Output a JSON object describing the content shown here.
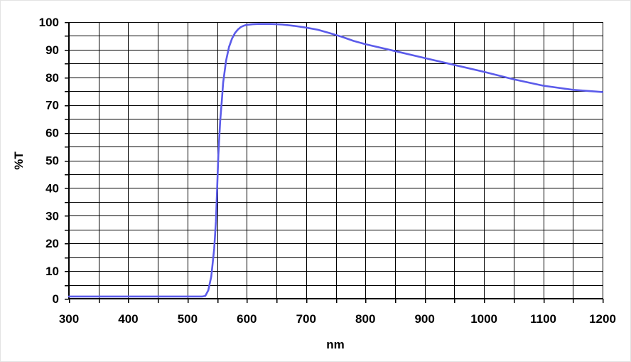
{
  "chart_data": {
    "type": "line",
    "title": "",
    "xlabel": "nm",
    "ylabel": "%T",
    "xlim": [
      300,
      1200
    ],
    "ylim": [
      0,
      100
    ],
    "x_ticks": [
      300,
      400,
      500,
      600,
      700,
      800,
      900,
      1000,
      1100,
      1200
    ],
    "y_ticks": [
      0,
      10,
      20,
      30,
      40,
      50,
      60,
      70,
      80,
      90,
      100
    ],
    "x_grid_step": 50,
    "y_grid_step": 5,
    "grid": true,
    "line_color": "#5b5bea",
    "series": [
      {
        "x": [
          300,
          400,
          500,
          525,
          530,
          535,
          540,
          545,
          548,
          550,
          552,
          555,
          558,
          560,
          565,
          570,
          575,
          580,
          585,
          590,
          595,
          600,
          610,
          620,
          640,
          660,
          680,
          700,
          720,
          740,
          760,
          780,
          800,
          850,
          900,
          950,
          1000,
          1050,
          1100,
          1150,
          1200
        ],
        "y": [
          0.8,
          0.8,
          0.8,
          0.8,
          1,
          3,
          8,
          18,
          28,
          40,
          52,
          64,
          72,
          78,
          86,
          91,
          94,
          96,
          97.3,
          98.2,
          98.7,
          99,
          99.2,
          99.3,
          99.3,
          99.1,
          98.6,
          98,
          97.2,
          96,
          94.7,
          93.2,
          92,
          89.5,
          87,
          84.5,
          82,
          79.3,
          77,
          75.5,
          74.7
        ]
      }
    ]
  }
}
